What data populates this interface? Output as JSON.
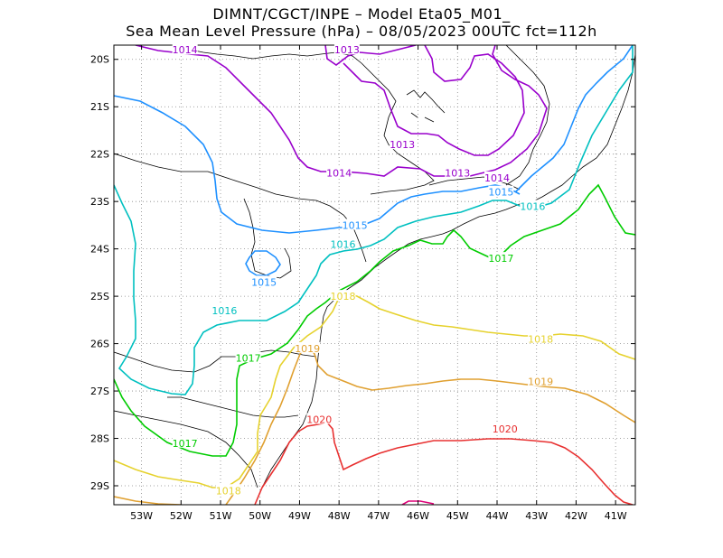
{
  "header": {
    "line1": "DIMNT/CGCT/INPE –  Model Eta05_M01_",
    "line2": "Sea Mean Level Pressure (hPa) – 08/05/2023 00UTC fct=112h"
  },
  "axes": {
    "lon_labels": [
      "53W",
      "52W",
      "51W",
      "50W",
      "49W",
      "48W",
      "47W",
      "46W",
      "45W",
      "44W",
      "43W",
      "42W",
      "41W"
    ],
    "lat_labels": [
      "20S",
      "21S",
      "22S",
      "23S",
      "24S",
      "25S",
      "26S",
      "27S",
      "28S",
      "29S"
    ],
    "lon_range": [
      -53.7,
      -40.5
    ],
    "lat_range": [
      -29.4,
      -19.7
    ]
  },
  "colors": {
    "c1013": "#9900cc",
    "c1014": "#9900cc",
    "c1015": "#1e90ff",
    "c1016": "#00c0c0",
    "c1017": "#00cc00",
    "c1018": "#e6d22e",
    "c1019": "#e0a030",
    "c1020": "#e83030",
    "c1021": "#dd0077",
    "coast": "#000000",
    "grid": "#888888"
  },
  "chart_data": {
    "type": "contour-map",
    "variable": "Sea Mean Level Pressure (hPa)",
    "contour_levels": [
      1013,
      1014,
      1015,
      1016,
      1017,
      1018,
      1019,
      1020
    ],
    "contour_labels": [
      {
        "text": "1014",
        "lon": -51.9,
        "lat": -19.8,
        "color_key": "c1014"
      },
      {
        "text": "1013",
        "lon": -47.8,
        "lat": -19.8,
        "color_key": "c1013"
      },
      {
        "text": "1013",
        "lon": -46.4,
        "lat": -21.8,
        "color_key": "c1013"
      },
      {
        "text": "1014",
        "lon": -48.0,
        "lat": -22.4,
        "color_key": "c1014"
      },
      {
        "text": "1013",
        "lon": -45.0,
        "lat": -22.4,
        "color_key": "c1013"
      },
      {
        "text": "1014",
        "lon": -44.0,
        "lat": -22.5,
        "color_key": "c1014"
      },
      {
        "text": "1015",
        "lon": -43.9,
        "lat": -22.8,
        "color_key": "c1015"
      },
      {
        "text": "1016",
        "lon": -43.1,
        "lat": -23.1,
        "color_key": "c1016"
      },
      {
        "text": "1015",
        "lon": -47.6,
        "lat": -23.5,
        "color_key": "c1015"
      },
      {
        "text": "1016",
        "lon": -47.9,
        "lat": -23.9,
        "color_key": "c1016"
      },
      {
        "text": "1015",
        "lon": -49.9,
        "lat": -24.7,
        "color_key": "c1015"
      },
      {
        "text": "1017",
        "lon": -43.9,
        "lat": -24.2,
        "color_key": "c1017"
      },
      {
        "text": "1018",
        "lon": -47.9,
        "lat": -25.0,
        "color_key": "c1018"
      },
      {
        "text": "1016",
        "lon": -50.9,
        "lat": -25.3,
        "color_key": "c1016"
      },
      {
        "text": "1018",
        "lon": -42.9,
        "lat": -25.9,
        "color_key": "c1018"
      },
      {
        "text": "1019",
        "lon": -48.8,
        "lat": -26.1,
        "color_key": "c1019"
      },
      {
        "text": "1017",
        "lon": -50.3,
        "lat": -26.3,
        "color_key": "c1017"
      },
      {
        "text": "1019",
        "lon": -42.9,
        "lat": -26.8,
        "color_key": "c1019"
      },
      {
        "text": "1020",
        "lon": -48.5,
        "lat": -27.6,
        "color_key": "c1020"
      },
      {
        "text": "1020",
        "lon": -43.8,
        "lat": -27.8,
        "color_key": "c1020"
      },
      {
        "text": "1017",
        "lon": -51.9,
        "lat": -28.1,
        "color_key": "c1017"
      },
      {
        "text": "1018",
        "lon": -50.8,
        "lat": -29.1,
        "color_key": "c1018"
      }
    ]
  }
}
